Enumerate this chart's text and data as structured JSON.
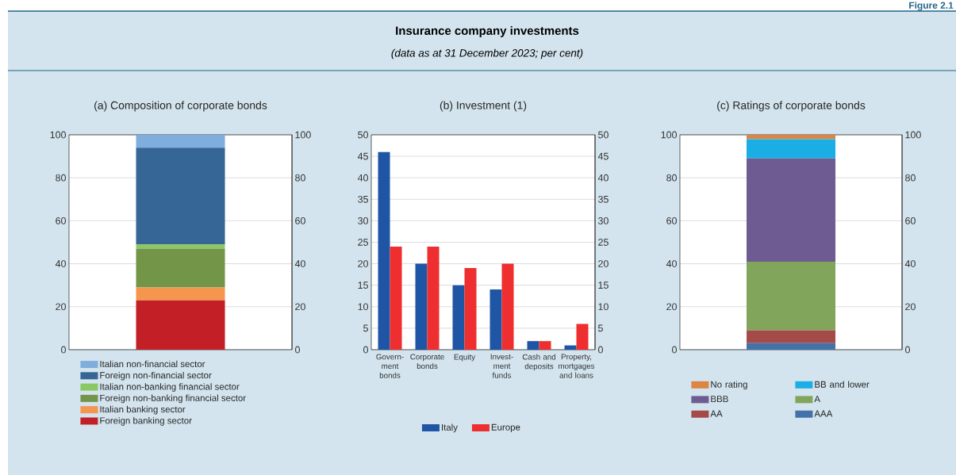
{
  "chart_data": [
    {
      "type": "other",
      "title": "Insurance company investments",
      "subtitle": "(data as at 31 December 2023; per cent)",
      "annotations": [
        "Figure 2.1"
      ]
    },
    {
      "type": "bar",
      "title": "(a) Composition of corporate bonds",
      "categories": [
        null
      ],
      "stacked": true,
      "series": [
        {
          "name": "Foreign banking sector",
          "color": "#c22026",
          "values": [
            23
          ]
        },
        {
          "name": "Italian banking sector",
          "color": "#f5964f",
          "values": [
            6
          ]
        },
        {
          "name": "Foreign non-banking financial sector",
          "color": "#729548",
          "values": [
            18
          ]
        },
        {
          "name": "Italian non-banking financial sector",
          "color": "#8ac863",
          "values": [
            2
          ]
        },
        {
          "name": "Foreign non-financial sector",
          "color": "#356695",
          "values": [
            45
          ]
        },
        {
          "name": "Italian non-financial sector",
          "color": "#7fadde",
          "values": [
            6
          ]
        }
      ],
      "ylim": [
        0,
        100
      ],
      "yticks": [
        0,
        20,
        40,
        60,
        80,
        100
      ],
      "y2lim": [
        0,
        100
      ],
      "y2ticks": [
        0,
        20,
        40,
        60,
        80,
        100
      ],
      "grid": "y",
      "legend": "bottom"
    },
    {
      "type": "bar",
      "title": "(b) Investment (1)",
      "categories": [
        "Govern-ment bonds",
        "Corporate bonds",
        "Equity",
        "Invest-ment funds",
        "Cash and deposits",
        "Property, mortgages and loans"
      ],
      "series": [
        {
          "name": "Italy",
          "color": "#1f55a5",
          "values": [
            46,
            20,
            15,
            14,
            2,
            1
          ]
        },
        {
          "name": "Europe",
          "color": "#ee2e2f",
          "values": [
            24,
            24,
            19,
            20,
            2,
            6
          ]
        }
      ],
      "ylim": [
        0,
        50
      ],
      "yticks": [
        0,
        5,
        10,
        15,
        20,
        25,
        30,
        35,
        40,
        45,
        50
      ],
      "y2lim": [
        0,
        50
      ],
      "y2ticks": [
        0,
        5,
        10,
        15,
        20,
        25,
        30,
        35,
        40,
        45,
        50
      ],
      "grid": "y",
      "legend": "bottom"
    },
    {
      "type": "bar",
      "title": "(c) Ratings of corporate bonds",
      "categories": [
        null
      ],
      "stacked": true,
      "series": [
        {
          "name": "AAA",
          "color": "#4272a8",
          "values": [
            3
          ]
        },
        {
          "name": "AA",
          "color": "#a44b4a",
          "values": [
            6
          ]
        },
        {
          "name": "A",
          "color": "#82a55c",
          "values": [
            32
          ]
        },
        {
          "name": "BBB",
          "color": "#6e5b91",
          "values": [
            48
          ]
        },
        {
          "name": "BB and lower",
          "color": "#1baee4",
          "values": [
            9
          ]
        },
        {
          "name": "No rating",
          "color": "#dd8543",
          "values": [
            2
          ]
        }
      ],
      "ylim": [
        0,
        100
      ],
      "yticks": [
        0,
        20,
        40,
        60,
        80,
        100
      ],
      "y2lim": [
        0,
        100
      ],
      "y2ticks": [
        0,
        20,
        40,
        60,
        80,
        100
      ],
      "grid": "y",
      "legend": "bottom"
    }
  ]
}
